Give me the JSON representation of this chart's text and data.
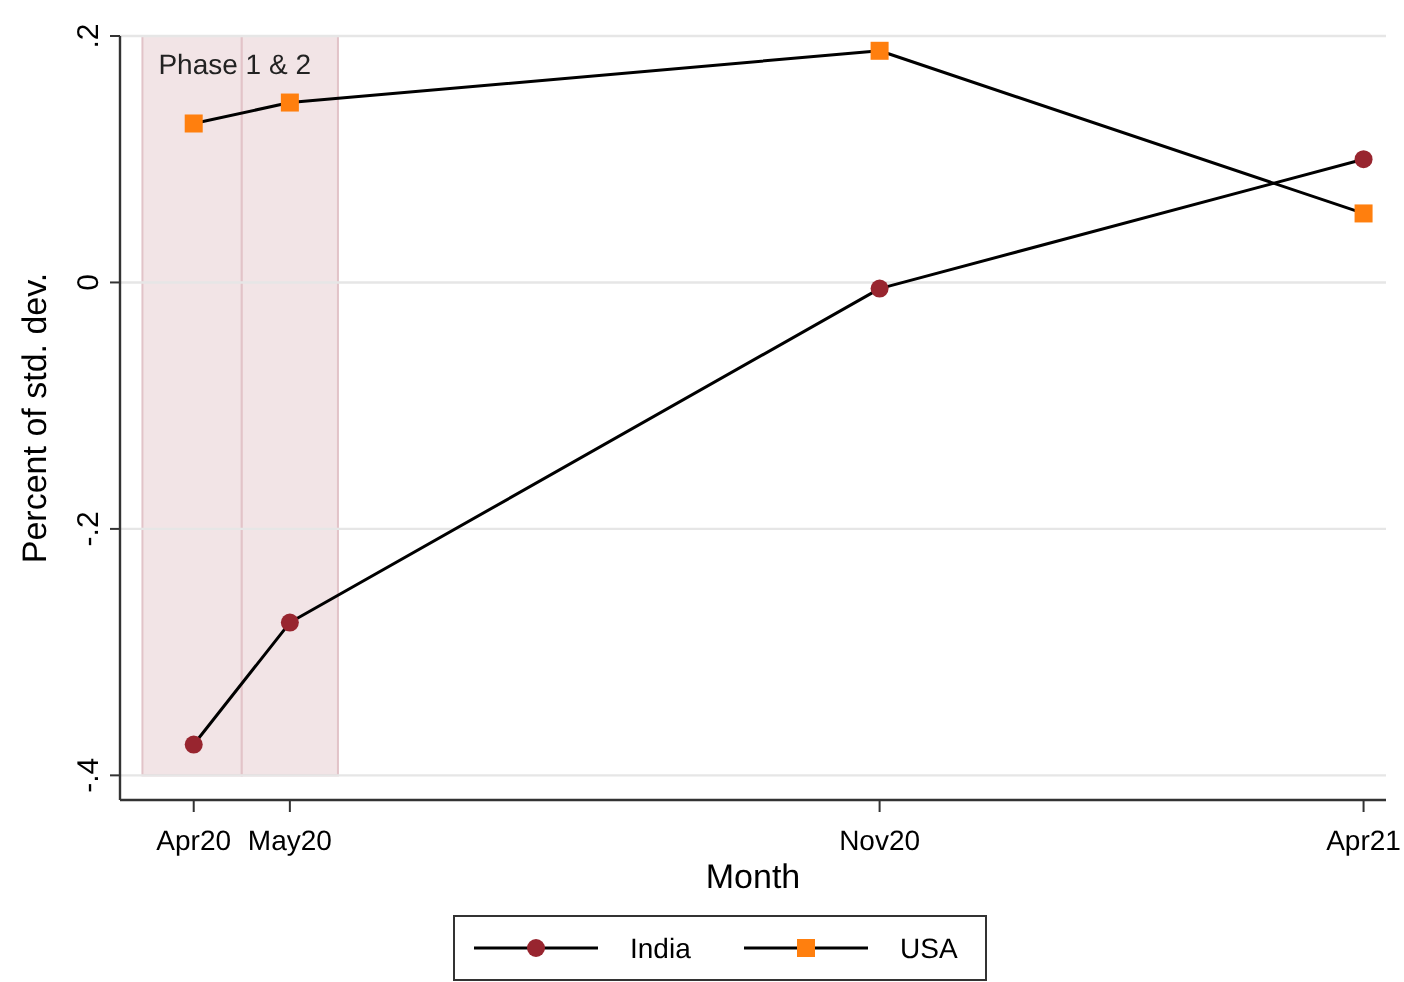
{
  "chart_data": {
    "type": "line",
    "xlabel": "Month",
    "ylabel": "Percent of std. dev.",
    "x": [
      "2020-04",
      "2020-05",
      "2020-11",
      "2021-04"
    ],
    "series": [
      {
        "name": "India",
        "color": "#98252f",
        "marker": "circle",
        "values": [
          -0.375,
          -0.276,
          -0.005,
          0.1
        ]
      },
      {
        "name": "USA",
        "color": "#ff7f0e",
        "marker": "square",
        "values": [
          0.129,
          0.146,
          0.188,
          0.056
        ]
      }
    ],
    "xlim": [
      "2020-03-09",
      "2021-04-08"
    ],
    "xticks": [
      {
        "value": "2020-04",
        "label": "Apr20"
      },
      {
        "value": "2020-05",
        "label": "May20"
      },
      {
        "value": "2020-11",
        "label": "Nov20"
      },
      {
        "value": "2021-04",
        "label": "Apr21"
      }
    ],
    "ylim": [
      -0.42,
      0.2
    ],
    "yticks": [
      {
        "value": -0.4,
        "label": "-.4"
      },
      {
        "value": -0.2,
        "label": "-.2"
      },
      {
        "value": 0,
        "label": "0"
      },
      {
        "value": 0.2,
        "label": ".2"
      }
    ],
    "bands": [
      {
        "axis": "x",
        "from": "2020-03-16",
        "to": "2020-04-16",
        "color": "#f2e4e6"
      },
      {
        "axis": "x",
        "from": "2020-04-16",
        "to": "2020-05-16",
        "color": "#f2e4e6"
      }
    ],
    "annotations": [
      "Phase 1 & 2"
    ],
    "grid": "y",
    "legend": "bottom"
  }
}
